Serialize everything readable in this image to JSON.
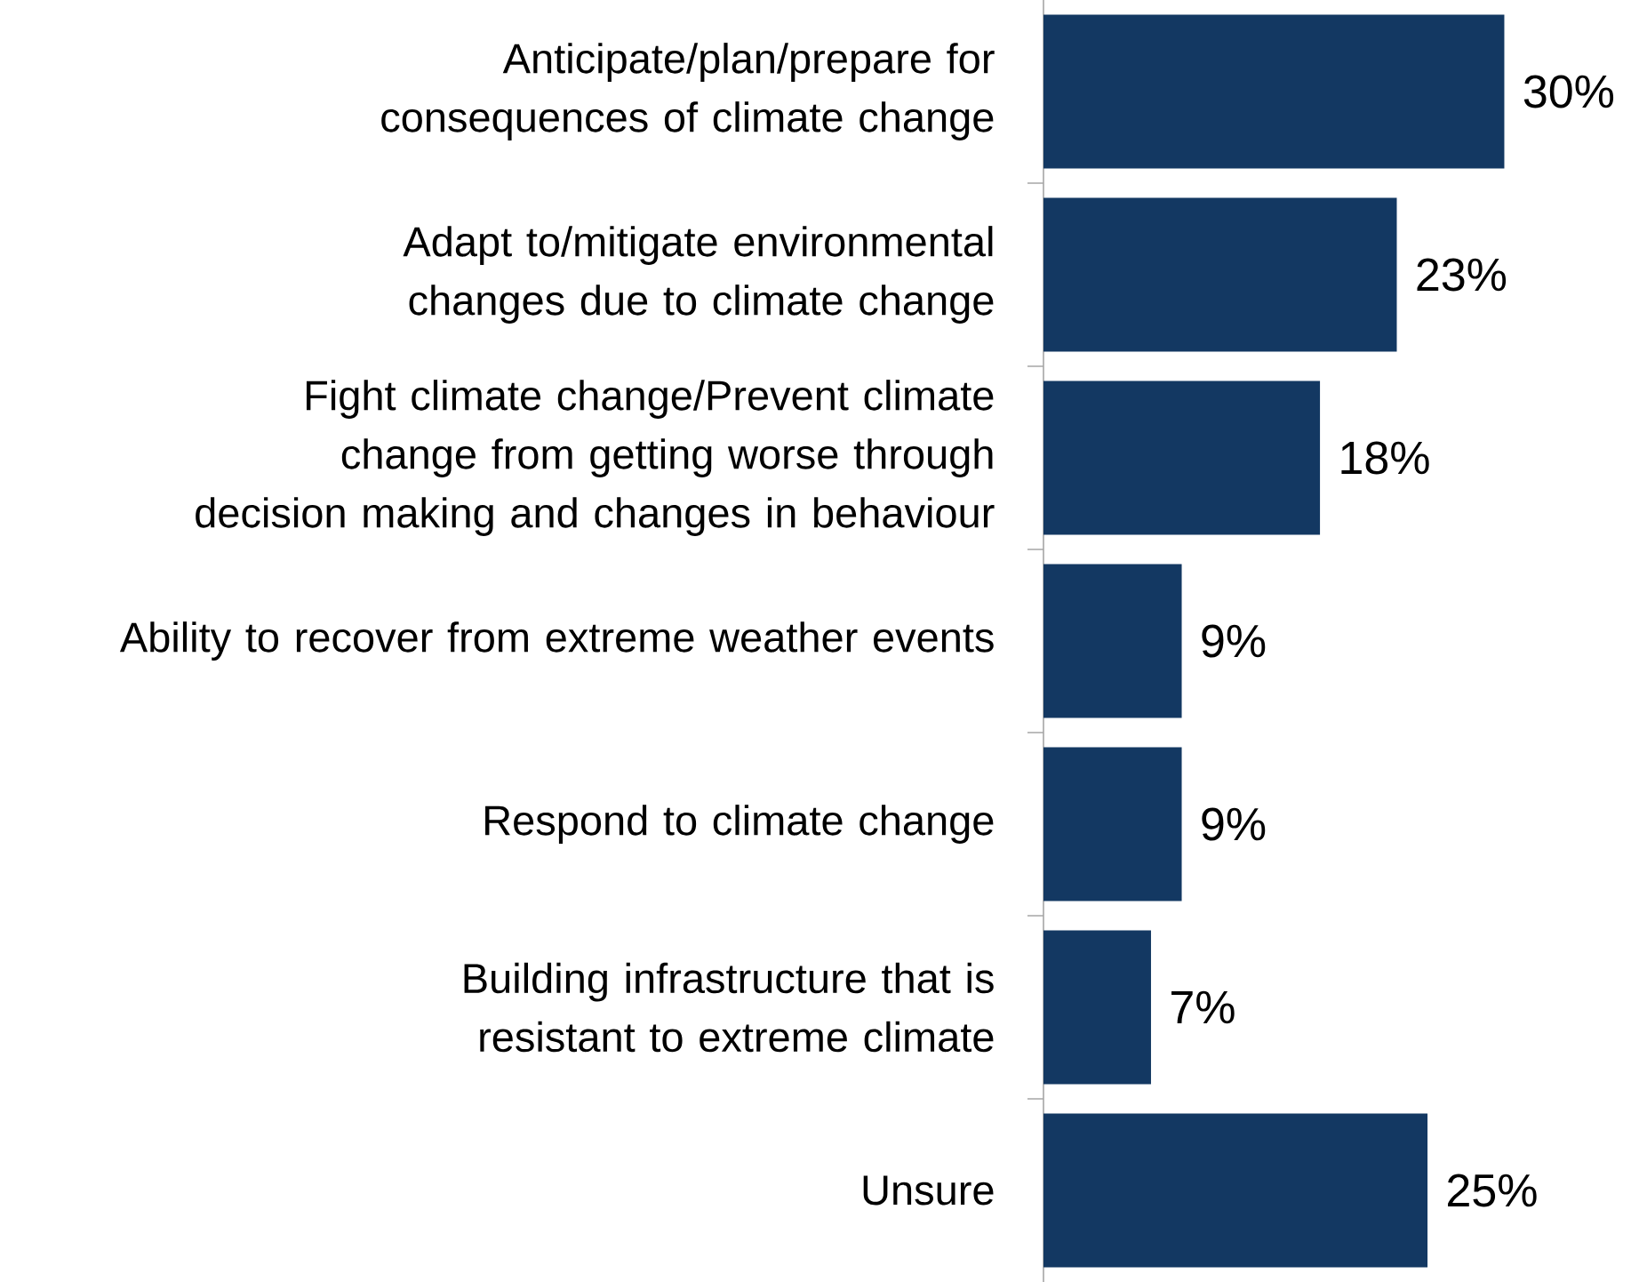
{
  "chart_data": {
    "type": "bar",
    "orientation": "horizontal",
    "categories": [
      "Anticipate/plan/prepare for consequences of climate change",
      "Adapt to/mitigate environmental changes due to climate change",
      "Fight climate change/Prevent climate change from getting worse through decision making and changes in behaviour",
      "Ability to recover from extreme weather events",
      "Respond to climate change",
      "Building infrastructure that is resistant to extreme climate",
      "Unsure"
    ],
    "values": [
      30,
      23,
      18,
      9,
      9,
      7,
      25
    ],
    "value_labels": [
      "30%",
      "23%",
      "18%",
      "9%",
      "9%",
      "7%",
      "25%"
    ],
    "color": "#133862"
  }
}
